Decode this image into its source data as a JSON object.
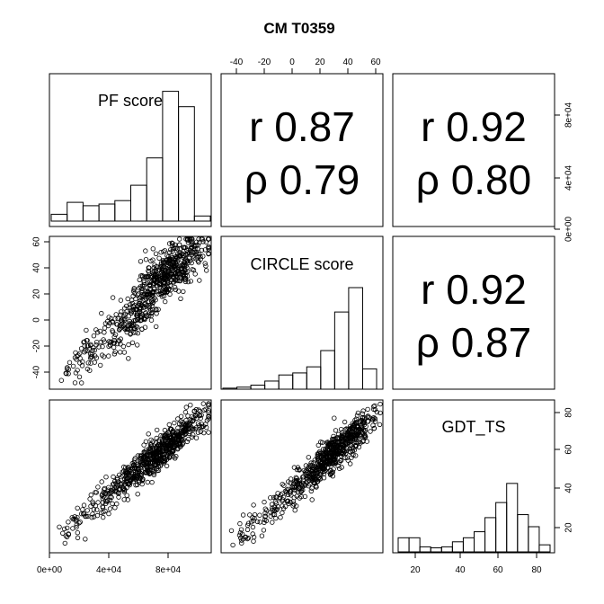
{
  "chart_data": {
    "type": "scatter-matrix",
    "title": "CM T0359",
    "variables": [
      "PF score",
      "CIRCLE score",
      "GDT_TS"
    ],
    "axis_ticks": {
      "pf": [
        "0e+00",
        "4e+04",
        "8e+04"
      ],
      "circle": [
        "-40",
        "-20",
        "0",
        "20",
        "40",
        "60"
      ],
      "gdt": [
        "20",
        "40",
        "60",
        "80"
      ],
      "pf_right": [
        "0e+00",
        "4e+04",
        "8e+04"
      ],
      "circle_left": [
        "60",
        "40",
        "20",
        "0",
        "-20",
        "-40"
      ],
      "gdt_right": [
        "20",
        "40",
        "60",
        "80"
      ]
    },
    "correlations": [
      {
        "pair": "PF score vs CIRCLE score",
        "r_text": "r 0.87",
        "rho_text": "ρ 0.79",
        "r": 0.87,
        "rho": 0.79
      },
      {
        "pair": "PF score vs GDT_TS",
        "r_text": "r 0.92",
        "rho_text": "ρ 0.80",
        "r": 0.92,
        "rho": 0.8
      },
      {
        "pair": "CIRCLE score vs GDT_TS",
        "r_text": "r 0.92",
        "rho_text": "ρ 0.87",
        "r": 0.92,
        "rho": 0.87
      }
    ],
    "histograms": {
      "pf": {
        "relative_heights": [
          0.04,
          0.11,
          0.09,
          0.1,
          0.12,
          0.21,
          0.37,
          0.76,
          0.67,
          0.03
        ]
      },
      "circle": {
        "relative_heights": [
          0.01,
          0.02,
          0.04,
          0.08,
          0.14,
          0.16,
          0.22,
          0.38,
          0.76,
          1.0,
          0.2
        ]
      },
      "gdt": {
        "relative_heights": [
          0.14,
          0.14,
          0.05,
          0.04,
          0.05,
          0.1,
          0.14,
          0.2,
          0.34,
          0.49,
          0.68,
          0.37,
          0.25,
          0.07
        ]
      }
    }
  }
}
